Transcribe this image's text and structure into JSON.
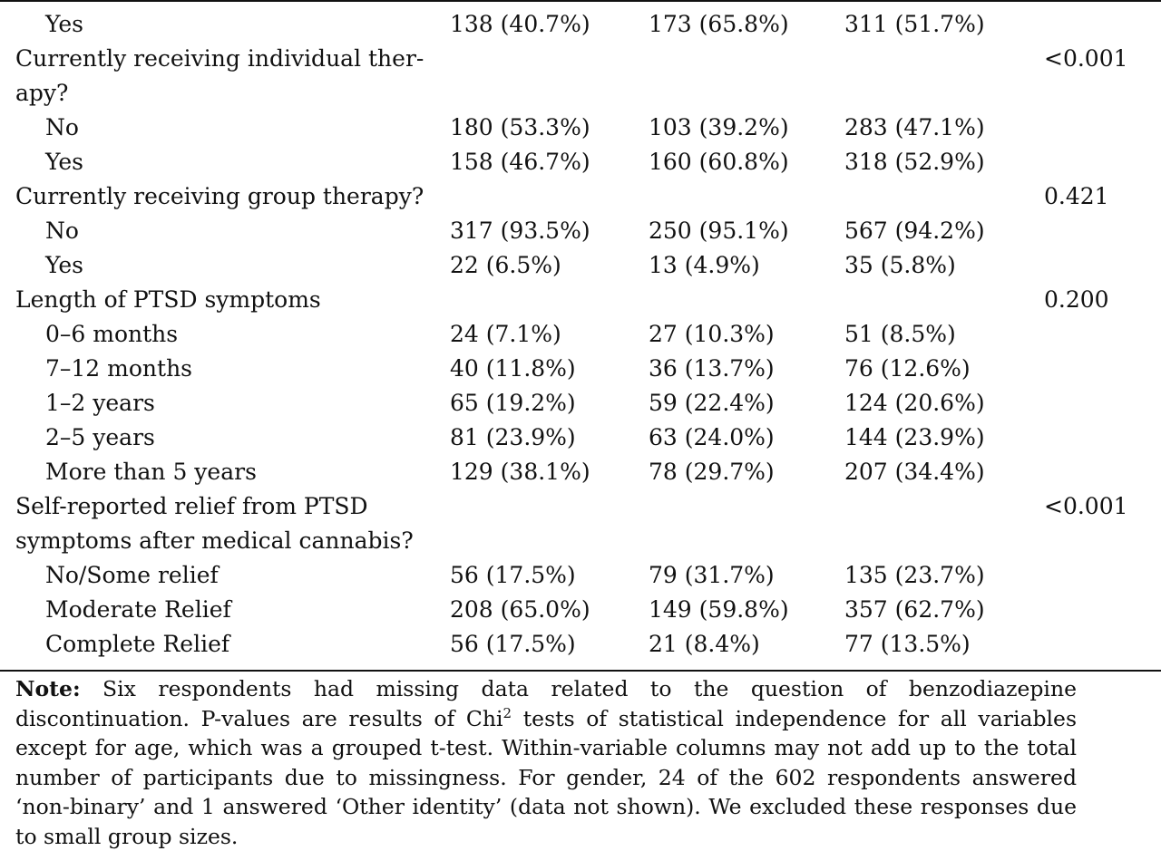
{
  "table": {
    "rows": [
      {
        "label": "Yes",
        "indent": true,
        "c1": "138 (40.7%)",
        "c2": "173 (65.8%)",
        "c3": "311 (51.7%)",
        "p": ""
      },
      {
        "label": "Currently receiving individual ther-",
        "indent": false,
        "c1": "",
        "c2": "",
        "c3": "",
        "p": "<0.001"
      },
      {
        "label": "apy?",
        "indent": false,
        "c1": "",
        "c2": "",
        "c3": "",
        "p": ""
      },
      {
        "label": "No",
        "indent": true,
        "c1": "180 (53.3%)",
        "c2": "103 (39.2%)",
        "c3": "283 (47.1%)",
        "p": ""
      },
      {
        "label": "Yes",
        "indent": true,
        "c1": "158 (46.7%)",
        "c2": "160 (60.8%)",
        "c3": "318 (52.9%)",
        "p": ""
      },
      {
        "label": "Currently receiving group therapy?",
        "indent": false,
        "c1": "",
        "c2": "",
        "c3": "",
        "p": "0.421"
      },
      {
        "label": "No",
        "indent": true,
        "c1": "317 (93.5%)",
        "c2": "250 (95.1%)",
        "c3": "567 (94.2%)",
        "p": ""
      },
      {
        "label": "Yes",
        "indent": true,
        "c1": "22 (6.5%)",
        "c2": "13 (4.9%)",
        "c3": "35 (5.8%)",
        "p": ""
      },
      {
        "label": "Length of PTSD symptoms",
        "indent": false,
        "c1": "",
        "c2": "",
        "c3": "",
        "p": "0.200"
      },
      {
        "label": "0–6 months",
        "indent": true,
        "c1": "24 (7.1%)",
        "c2": "27 (10.3%)",
        "c3": "51 (8.5%)",
        "p": ""
      },
      {
        "label": "7–12 months",
        "indent": true,
        "c1": "40 (11.8%)",
        "c2": "36 (13.7%)",
        "c3": "76 (12.6%)",
        "p": ""
      },
      {
        "label": "1–2 years",
        "indent": true,
        "c1": "65 (19.2%)",
        "c2": "59 (22.4%)",
        "c3": "124 (20.6%)",
        "p": ""
      },
      {
        "label": "2–5 years",
        "indent": true,
        "c1": "81 (23.9%)",
        "c2": "63 (24.0%)",
        "c3": "144 (23.9%)",
        "p": ""
      },
      {
        "label": "More than 5 years",
        "indent": true,
        "c1": "129 (38.1%)",
        "c2": "78 (29.7%)",
        "c3": "207 (34.4%)",
        "p": ""
      },
      {
        "label": "Self-reported relief from PTSD",
        "indent": false,
        "c1": "",
        "c2": "",
        "c3": "",
        "p": "<0.001"
      },
      {
        "label": "symptoms after medical cannabis?",
        "indent": false,
        "c1": "",
        "c2": "",
        "c3": "",
        "p": ""
      },
      {
        "label": "No/Some relief",
        "indent": true,
        "c1": "56 (17.5%)",
        "c2": "79 (31.7%)",
        "c3": "135 (23.7%)",
        "p": ""
      },
      {
        "label": "Moderate Relief",
        "indent": true,
        "c1": "208 (65.0%)",
        "c2": "149 (59.8%)",
        "c3": "357 (62.7%)",
        "p": ""
      },
      {
        "label": "Complete Relief",
        "indent": true,
        "c1": "56 (17.5%)",
        "c2": "21 (8.4%)",
        "c3": "77 (13.5%)",
        "p": ""
      }
    ]
  },
  "note": {
    "lead": "Note:",
    "text_1": " Six respondents had missing data related to the question of benzodiazepine discontinuation. P-values are results of Chi",
    "sup": "2",
    "text_2": " tests of statistical independence for all variables except for age, which was a grouped t-test. Within-variable columns may not add up to the total number of participants due to missingness. For gender, 24 of the 602 respondents answered ‘non-binary’ and 1 answered ‘Other identity’ (data not shown). We excluded these responses due to small group sizes."
  }
}
